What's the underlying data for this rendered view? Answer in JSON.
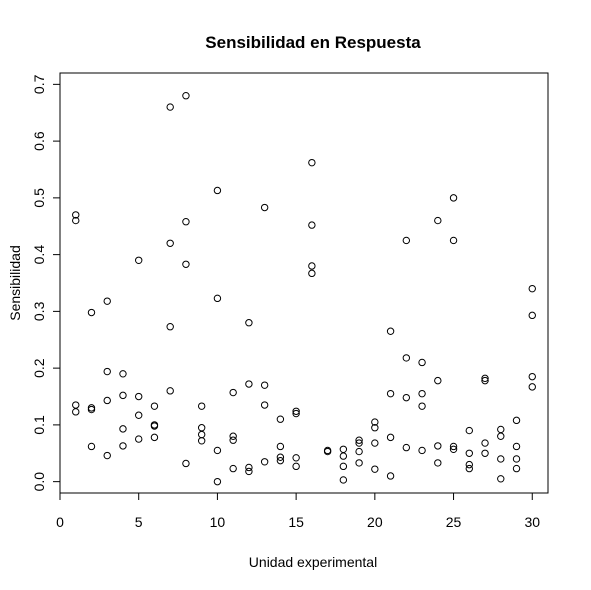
{
  "chart_data": {
    "type": "scatter",
    "title": "Sensibilidad en Respuesta",
    "xlabel": "Unidad experimental",
    "ylabel": "Sensibilidad",
    "xlim": [
      0,
      31
    ],
    "ylim": [
      -0.02,
      0.72
    ],
    "x_ticks": [
      0,
      5,
      10,
      15,
      20,
      25,
      30
    ],
    "x_tick_labels": [
      "0",
      "5",
      "10",
      "15",
      "20",
      "25",
      "30"
    ],
    "y_ticks": [
      0.0,
      0.1,
      0.2,
      0.3,
      0.4,
      0.5,
      0.6,
      0.7
    ],
    "y_tick_labels": [
      "0.0",
      "0.1",
      "0.2",
      "0.3",
      "0.4",
      "0.5",
      "0.6",
      "0.7"
    ],
    "grid": false,
    "legend": "none",
    "marker": "open-circle",
    "points": [
      [
        1,
        0.47
      ],
      [
        1,
        0.46
      ],
      [
        1,
        0.135
      ],
      [
        1,
        0.123
      ],
      [
        2,
        0.298
      ],
      [
        2,
        0.13
      ],
      [
        2,
        0.127
      ],
      [
        2,
        0.062
      ],
      [
        3,
        0.318
      ],
      [
        3,
        0.194
      ],
      [
        3,
        0.143
      ],
      [
        3,
        0.046
      ],
      [
        4,
        0.19
      ],
      [
        4,
        0.152
      ],
      [
        4,
        0.093
      ],
      [
        4,
        0.063
      ],
      [
        5,
        0.39
      ],
      [
        5,
        0.15
      ],
      [
        5,
        0.117
      ],
      [
        5,
        0.075
      ],
      [
        6,
        0.133
      ],
      [
        6,
        0.1
      ],
      [
        6,
        0.098
      ],
      [
        6,
        0.078
      ],
      [
        7,
        0.66
      ],
      [
        7,
        0.42
      ],
      [
        7,
        0.273
      ],
      [
        7,
        0.16
      ],
      [
        8,
        0.68
      ],
      [
        8,
        0.458
      ],
      [
        8,
        0.383
      ],
      [
        8,
        0.032
      ],
      [
        9,
        0.133
      ],
      [
        9,
        0.095
      ],
      [
        9,
        0.083
      ],
      [
        9,
        0.072
      ],
      [
        10,
        0.513
      ],
      [
        10,
        0.323
      ],
      [
        10,
        0.055
      ],
      [
        10,
        0.0
      ],
      [
        11,
        0.157
      ],
      [
        11,
        0.08
      ],
      [
        11,
        0.073
      ],
      [
        11,
        0.023
      ],
      [
        12,
        0.28
      ],
      [
        12,
        0.172
      ],
      [
        12,
        0.025
      ],
      [
        12,
        0.018
      ],
      [
        13,
        0.483
      ],
      [
        13,
        0.17
      ],
      [
        13,
        0.135
      ],
      [
        13,
        0.035
      ],
      [
        14,
        0.11
      ],
      [
        14,
        0.062
      ],
      [
        14,
        0.043
      ],
      [
        14,
        0.037
      ],
      [
        15,
        0.124
      ],
      [
        15,
        0.12
      ],
      [
        15,
        0.042
      ],
      [
        15,
        0.027
      ],
      [
        16,
        0.562
      ],
      [
        16,
        0.452
      ],
      [
        16,
        0.38
      ],
      [
        16,
        0.367
      ],
      [
        17,
        0.055
      ],
      [
        17,
        0.053
      ],
      [
        18,
        0.057
      ],
      [
        18,
        0.045
      ],
      [
        18,
        0.027
      ],
      [
        18,
        0.003
      ],
      [
        19,
        0.073
      ],
      [
        19,
        0.068
      ],
      [
        19,
        0.053
      ],
      [
        19,
        0.033
      ],
      [
        20,
        0.105
      ],
      [
        20,
        0.095
      ],
      [
        20,
        0.068
      ],
      [
        20,
        0.022
      ],
      [
        21,
        0.265
      ],
      [
        21,
        0.155
      ],
      [
        21,
        0.078
      ],
      [
        21,
        0.01
      ],
      [
        22,
        0.425
      ],
      [
        22,
        0.218
      ],
      [
        22,
        0.148
      ],
      [
        22,
        0.06
      ],
      [
        23,
        0.21
      ],
      [
        23,
        0.155
      ],
      [
        23,
        0.133
      ],
      [
        23,
        0.055
      ],
      [
        24,
        0.46
      ],
      [
        24,
        0.178
      ],
      [
        24,
        0.063
      ],
      [
        24,
        0.033
      ],
      [
        25,
        0.5
      ],
      [
        25,
        0.425
      ],
      [
        25,
        0.062
      ],
      [
        25,
        0.057
      ],
      [
        26,
        0.09
      ],
      [
        26,
        0.05
      ],
      [
        26,
        0.03
      ],
      [
        26,
        0.023
      ],
      [
        27,
        0.182
      ],
      [
        27,
        0.178
      ],
      [
        27,
        0.068
      ],
      [
        27,
        0.05
      ],
      [
        28,
        0.092
      ],
      [
        28,
        0.08
      ],
      [
        28,
        0.04
      ],
      [
        28,
        0.005
      ],
      [
        29,
        0.108
      ],
      [
        29,
        0.062
      ],
      [
        29,
        0.04
      ],
      [
        29,
        0.023
      ],
      [
        30,
        0.34
      ],
      [
        30,
        0.293
      ],
      [
        30,
        0.185
      ],
      [
        30,
        0.167
      ]
    ]
  }
}
